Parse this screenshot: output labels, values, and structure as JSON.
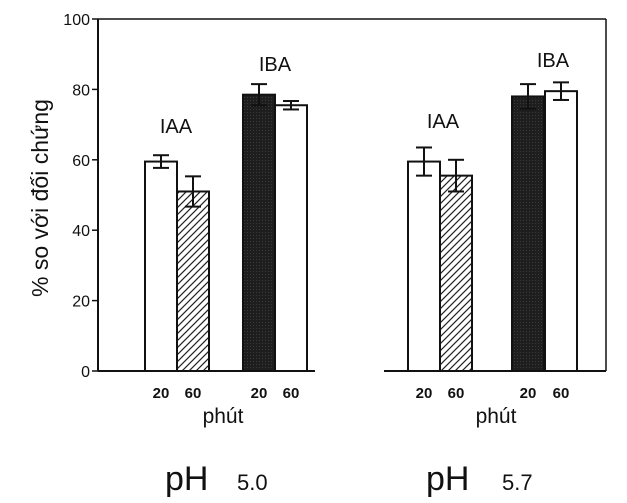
{
  "chart_data": {
    "type": "bar",
    "ylabel": "% so với đối chứng",
    "ylim": [
      0,
      100
    ],
    "yticks": [
      0,
      20,
      40,
      60,
      80,
      100
    ],
    "panels": [
      {
        "ph_prefix": "pH",
        "ph_value": "5.0",
        "x_unit": "phút",
        "groups": [
          {
            "label": "IAA",
            "bars": [
              {
                "x": "20",
                "value": 59.5,
                "error": 1.8,
                "fill": "white"
              },
              {
                "x": "60",
                "value": 51,
                "error": 4.3,
                "fill": "hatch"
              }
            ]
          },
          {
            "label": "IBA",
            "bars": [
              {
                "x": "20",
                "value": 78.5,
                "error": 3,
                "fill": "dark"
              },
              {
                "x": "60",
                "value": 75.5,
                "error": 1.2,
                "fill": "white"
              }
            ]
          }
        ]
      },
      {
        "ph_prefix": "pH",
        "ph_value": "5.7",
        "x_unit": "phút",
        "groups": [
          {
            "label": "IAA",
            "bars": [
              {
                "x": "20",
                "value": 59.5,
                "error": 4,
                "fill": "white"
              },
              {
                "x": "60",
                "value": 55.5,
                "error": 4.5,
                "fill": "hatch"
              }
            ]
          },
          {
            "label": "IBA",
            "bars": [
              {
                "x": "20",
                "value": 78,
                "error": 3.5,
                "fill": "dark"
              },
              {
                "x": "60",
                "value": 79.5,
                "error": 2.5,
                "fill": "white"
              }
            ]
          }
        ]
      }
    ],
    "colors": {
      "dark": "#1e1e1e",
      "hatch_line": "#222222",
      "frame": "#111111"
    }
  }
}
